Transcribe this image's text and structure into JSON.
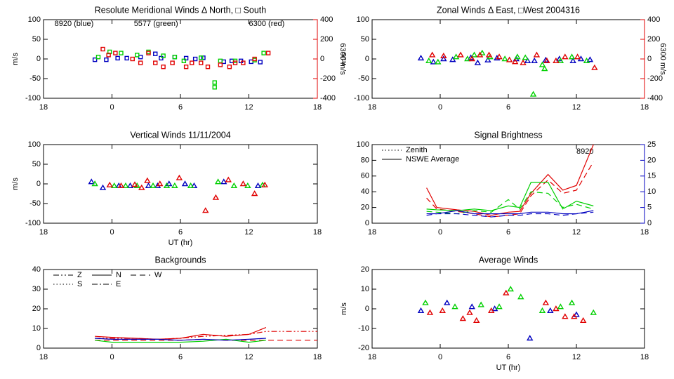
{
  "chart_data": [
    {
      "type": "scatter",
      "title": "Resolute Meridional Winds Δ North, □ South",
      "ylabel": "m/s",
      "y2label": "6300 m/s",
      "y2color": "#e00000",
      "annotations": [
        {
          "text": "8920 (blue)",
          "color": "#0000c0"
        },
        {
          "text": "5577 (green)",
          "color": "#00d000"
        },
        {
          "text": "6300 (red)",
          "color": "#e00000"
        }
      ],
      "xlim": [
        -6,
        18
      ],
      "xticks": [
        {
          "value": -6,
          "label": "18"
        },
        0,
        6,
        12,
        18
      ],
      "ylim": [
        -100,
        100
      ],
      "yticks": [
        -100,
        -50,
        0,
        50,
        100
      ],
      "y2lim": [
        -400,
        400
      ],
      "y2ticks": [
        -400,
        -200,
        0,
        200,
        400
      ],
      "series": [
        {
          "color": "#0000c0",
          "marker": "square",
          "x": [
            -1.5,
            -0.5,
            0.5,
            1.3,
            2.5,
            3.8,
            4.3,
            5.5,
            6.5,
            7.3,
            8.0,
            9.8,
            10.5,
            11.3,
            12.2,
            13.0
          ],
          "values": [
            -2,
            -2,
            2,
            2,
            5,
            13,
            2,
            5,
            2,
            0,
            3,
            -7,
            -5,
            -5,
            -7,
            -8
          ]
        },
        {
          "color": "#00d000",
          "marker": "square",
          "x": [
            -1.2,
            -0.2,
            0.8,
            2.2,
            3.2,
            4.5,
            5.5,
            6.3,
            7.8,
            9.0,
            9.0,
            9.5,
            10.8,
            12.5,
            13.3
          ],
          "values": [
            5,
            18,
            15,
            10,
            18,
            8,
            5,
            -5,
            3,
            -60,
            -72,
            -5,
            -5,
            -3,
            15
          ]
        },
        {
          "color": "#e00000",
          "marker": "square",
          "axis": "y2",
          "x": [
            -0.8,
            -0.3,
            0.3,
            1.8,
            2.5,
            3.2,
            3.8,
            4.5,
            5.3,
            6.5,
            7.0,
            7.8,
            8.4,
            9.5,
            10.3,
            10.8,
            11.5,
            12.5,
            13.7
          ],
          "values": [
            100,
            40,
            60,
            0,
            -40,
            60,
            -40,
            -80,
            -40,
            -80,
            -40,
            -40,
            -80,
            -60,
            -80,
            -40,
            -40,
            0,
            60
          ]
        }
      ]
    },
    {
      "type": "scatter",
      "title": "Zonal Winds Δ East, □West 2004316",
      "ylabel": "m/s",
      "y2label": "6300 m/s",
      "y2color": "#e00000",
      "xlim": [
        -6,
        18
      ],
      "xticks": [
        {
          "value": -6,
          "label": "18"
        },
        0,
        6,
        12,
        18
      ],
      "ylim": [
        -100,
        100
      ],
      "yticks": [
        -100,
        -50,
        0,
        50,
        100
      ],
      "y2lim": [
        -400,
        400
      ],
      "y2ticks": [
        -400,
        -200,
        0,
        200,
        400
      ],
      "series": [
        {
          "color": "#0000c0",
          "marker": "triangle",
          "x": [
            -1.7,
            -0.6,
            0.3,
            1.1,
            2.7,
            3.3,
            4.2,
            5.0,
            6.7,
            7.7,
            8.3,
            9.3,
            10.5,
            11.7,
            12.4,
            13.2
          ],
          "values": [
            2,
            -8,
            0,
            -2,
            3,
            -10,
            -3,
            2,
            0,
            -5,
            -5,
            -3,
            0,
            -5,
            0,
            -2
          ]
        },
        {
          "color": "#00d000",
          "marker": "triangle",
          "x": [
            -1.0,
            -0.2,
            1.4,
            2.4,
            3.0,
            3.7,
            4.4,
            5.7,
            6.8,
            7.5,
            8.2,
            9.0,
            9.2,
            10.6,
            11.6,
            12.9
          ],
          "values": [
            -5,
            -8,
            5,
            0,
            10,
            15,
            5,
            0,
            5,
            3,
            -90,
            -15,
            -25,
            -5,
            5,
            -5
          ]
        },
        {
          "color": "#e00000",
          "marker": "triangle",
          "axis": "y2",
          "x": [
            -0.7,
            0.3,
            1.8,
            2.8,
            3.5,
            4.3,
            5.2,
            6.1,
            6.6,
            7.3,
            8.5,
            9.4,
            10.2,
            11.0,
            12.1,
            13.6
          ],
          "values": [
            40,
            30,
            40,
            0,
            40,
            40,
            20,
            -10,
            -30,
            -40,
            40,
            -20,
            -20,
            20,
            20,
            -90
          ]
        }
      ]
    },
    {
      "type": "scatter",
      "title": "Vertical Winds 11/11/2004",
      "ylabel": "m/s",
      "xlabel": "UT (hr)",
      "xlim": [
        -6,
        18
      ],
      "xticks": [
        {
          "value": -6,
          "label": "18"
        },
        0,
        6,
        12,
        18
      ],
      "ylim": [
        -100,
        100
      ],
      "yticks": [
        -100,
        -50,
        0,
        50,
        100
      ],
      "series": [
        {
          "color": "#0000c0",
          "marker": "triangle",
          "x": [
            -1.8,
            -0.8,
            0.6,
            1.6,
            3.2,
            4.0,
            5.0,
            6.4,
            7.2,
            9.8,
            12.8
          ],
          "values": [
            5,
            -10,
            -5,
            -5,
            -5,
            -5,
            0,
            0,
            -5,
            5,
            -5
          ]
        },
        {
          "color": "#00d000",
          "marker": "triangle",
          "x": [
            -1.5,
            0.2,
            1.2,
            2.2,
            3.6,
            4.8,
            5.5,
            6.9,
            9.3,
            10.7,
            11.9,
            13.2
          ],
          "values": [
            0,
            -5,
            -5,
            -5,
            -5,
            -5,
            -5,
            -5,
            5,
            -5,
            -5,
            -3
          ]
        },
        {
          "color": "#e00000",
          "marker": "triangle",
          "x": [
            -0.2,
            0.8,
            2.0,
            2.6,
            3.1,
            4.2,
            5.9,
            8.2,
            9.1,
            10.2,
            11.5,
            12.5,
            13.4
          ],
          "values": [
            -3,
            -5,
            -2,
            -10,
            8,
            0,
            15,
            -68,
            -35,
            10,
            0,
            -25,
            -3
          ]
        }
      ]
    },
    {
      "type": "line",
      "title": "Signal Brightness",
      "y2color": "#0000c0",
      "annotations": [
        {
          "text": "8920",
          "color": "#0000c0"
        }
      ],
      "legend": [
        {
          "label": "Zenith",
          "style": "dotted"
        },
        {
          "label": "NSWE Average",
          "style": "solid"
        }
      ],
      "xlim": [
        -6,
        18
      ],
      "xticks": [
        {
          "value": -6,
          "label": "18"
        },
        0,
        6,
        12,
        18
      ],
      "ylim": [
        0,
        100
      ],
      "yticks": [
        0,
        20,
        40,
        60,
        80,
        100
      ],
      "y2lim": [
        0,
        25
      ],
      "y2ticks": [
        0,
        5,
        10,
        15,
        20,
        25
      ],
      "series": [
        {
          "color": "#e00000",
          "style": "solid",
          "x": [
            -1.2,
            -0.3,
            1.5,
            3,
            4.5,
            6,
            7,
            8,
            9.5,
            10.8,
            12,
            13.5
          ],
          "values": [
            45,
            20,
            17,
            15,
            10,
            14,
            15,
            38,
            62,
            42,
            48,
            100
          ]
        },
        {
          "color": "#e00000",
          "style": "dashed",
          "x": [
            -1.2,
            -0.3,
            1.5,
            3,
            4.5,
            6,
            7,
            8,
            9.5,
            10.8,
            12,
            13.5
          ],
          "values": [
            32,
            18,
            15,
            12,
            8,
            10,
            12,
            35,
            55,
            38,
            42,
            78
          ]
        },
        {
          "color": "#00d000",
          "style": "solid",
          "x": [
            -1.2,
            -0.3,
            1.5,
            3,
            4.5,
            6,
            7,
            8,
            9.5,
            10.8,
            12,
            13.5
          ],
          "values": [
            18,
            17,
            16,
            18,
            16,
            22,
            20,
            52,
            52,
            18,
            28,
            22
          ]
        },
        {
          "color": "#00d000",
          "style": "dashed",
          "x": [
            -1.2,
            -0.3,
            1.5,
            3,
            4.5,
            6,
            7,
            8,
            9.5,
            10.8,
            12,
            13.5
          ],
          "values": [
            15,
            14,
            12,
            16,
            14,
            30,
            18,
            40,
            38,
            20,
            24,
            18
          ]
        },
        {
          "color": "#0000c0",
          "style": "solid",
          "axis": "y2",
          "x": [
            -1.2,
            -0.3,
            1.5,
            3,
            4.5,
            6,
            7,
            8,
            9.5,
            10.8,
            12,
            13.5
          ],
          "values": [
            3,
            3,
            4,
            3,
            3,
            3,
            3,
            3.5,
            3.5,
            3,
            3,
            4
          ]
        },
        {
          "color": "#0000c0",
          "style": "dashed",
          "axis": "y2",
          "x": [
            -1.2,
            -0.3,
            1.5,
            3,
            4.5,
            6,
            7,
            8,
            9.5,
            10.8,
            12,
            13.5
          ],
          "values": [
            2.5,
            3,
            3,
            2.5,
            2,
            2.5,
            2.5,
            3,
            3,
            2.5,
            3,
            3.5
          ]
        }
      ]
    },
    {
      "type": "line",
      "title": "Backgrounds",
      "legend": [
        {
          "label": "Z",
          "style": "dashdotdot"
        },
        {
          "label": "N",
          "style": "solid"
        },
        {
          "label": "W",
          "style": "dashed"
        },
        {
          "label": "S",
          "style": "dotted"
        },
        {
          "label": "E",
          "style": "dashdot"
        }
      ],
      "xlim": [
        -6,
        18
      ],
      "xticks": [
        {
          "value": -6,
          "label": "18"
        },
        0,
        6,
        12,
        18
      ],
      "ylim": [
        0,
        40
      ],
      "yticks": [
        0,
        10,
        20,
        30,
        40
      ],
      "series": [
        {
          "color": "#e00000",
          "style": "dashdotdot",
          "x": [
            -1.5,
            0,
            2,
            4,
            6,
            8,
            10,
            12,
            13.5,
            18
          ],
          "values": [
            5,
            5,
            5,
            4.5,
            5,
            6,
            6.5,
            7,
            8.5,
            8.5
          ]
        },
        {
          "color": "#e00000",
          "style": "dashed",
          "x": [
            -1.5,
            0,
            2,
            4,
            6,
            8,
            10,
            12,
            13.5,
            18
          ],
          "values": [
            4,
            4,
            4,
            4,
            4,
            4.5,
            4,
            4,
            4,
            4
          ]
        },
        {
          "color": "#e00000",
          "style": "solid",
          "x": [
            -1.5,
            0,
            2,
            4,
            6,
            8,
            10,
            12,
            13.5
          ],
          "values": [
            6,
            5.5,
            5,
            4.5,
            5,
            7,
            6,
            7,
            10.5
          ]
        },
        {
          "color": "#00d000",
          "style": "solid",
          "x": [
            -1.5,
            0,
            2,
            4,
            6,
            8,
            10,
            12,
            13.5
          ],
          "values": [
            4,
            3,
            3,
            3,
            3,
            3.5,
            4.5,
            3,
            4
          ]
        },
        {
          "color": "#0000c0",
          "style": "solid",
          "x": [
            -1.5,
            0,
            2,
            4,
            6,
            8,
            10,
            12,
            13.5
          ],
          "values": [
            5,
            4.5,
            4.5,
            4.5,
            4,
            4.5,
            4,
            4.5,
            5
          ]
        }
      ]
    },
    {
      "type": "scatter",
      "title": "Average Winds",
      "ylabel": "m/s",
      "xlabel": "UT (hr)",
      "xlim": [
        -6,
        18
      ],
      "xticks": [
        {
          "value": -6,
          "label": "18"
        },
        0,
        6,
        12,
        18
      ],
      "ylim": [
        -20,
        20
      ],
      "yticks": [
        -20,
        -10,
        0,
        10,
        20
      ],
      "series": [
        {
          "color": "#0000c0",
          "marker": "triangle",
          "x": [
            -1.7,
            0.6,
            2.8,
            4.8,
            7.9,
            9.7,
            12.0
          ],
          "values": [
            -1,
            3,
            1,
            0,
            -15,
            -1,
            -3
          ]
        },
        {
          "color": "#00d000",
          "marker": "triangle",
          "x": [
            -1.3,
            1.3,
            3.6,
            5.2,
            6.2,
            7.1,
            9.0,
            10.6,
            11.6,
            13.5
          ],
          "values": [
            3,
            1,
            2,
            1,
            10,
            6,
            -1,
            1,
            3,
            -2
          ]
        },
        {
          "color": "#e00000",
          "marker": "triangle",
          "x": [
            -0.9,
            0.2,
            2.0,
            2.6,
            3.2,
            4.5,
            5.8,
            9.3,
            10.2,
            11.0,
            11.8,
            12.6
          ],
          "values": [
            -2,
            -1,
            -5,
            -2,
            -6,
            -1,
            8,
            3,
            0,
            -4,
            -4,
            -6
          ]
        }
      ]
    }
  ]
}
